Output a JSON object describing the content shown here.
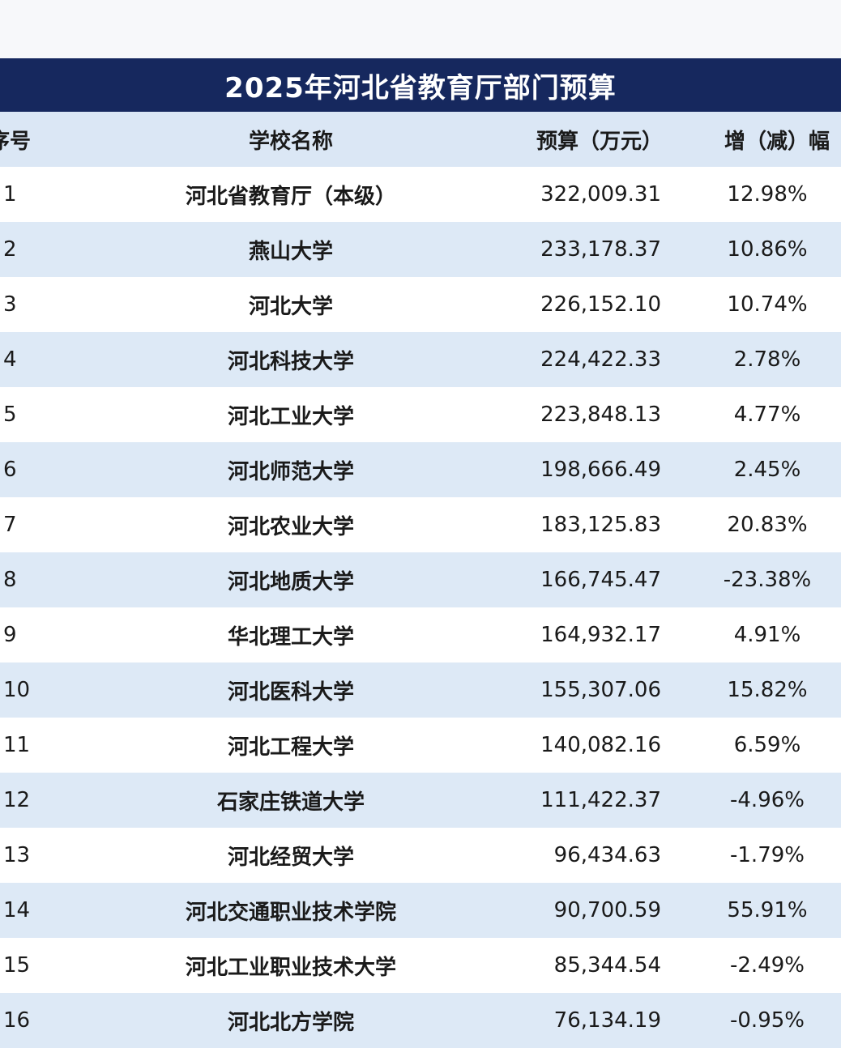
{
  "title": "2025年河北省教育厅部门预算",
  "headers": {
    "index": "序号",
    "name": "学校名称",
    "budget": "预算（万元）",
    "change": "增（减）幅"
  },
  "rows": [
    {
      "index": "1",
      "name": "河北省教育厅（本级）",
      "budget": "322,009.31",
      "change": "12.98%"
    },
    {
      "index": "2",
      "name": "燕山大学",
      "budget": "233,178.37",
      "change": "10.86%"
    },
    {
      "index": "3",
      "name": "河北大学",
      "budget": "226,152.10",
      "change": "10.74%"
    },
    {
      "index": "4",
      "name": "河北科技大学",
      "budget": "224,422.33",
      "change": "2.78%"
    },
    {
      "index": "5",
      "name": "河北工业大学",
      "budget": "223,848.13",
      "change": "4.77%"
    },
    {
      "index": "6",
      "name": "河北师范大学",
      "budget": "198,666.49",
      "change": "2.45%"
    },
    {
      "index": "7",
      "name": "河北农业大学",
      "budget": "183,125.83",
      "change": "20.83%"
    },
    {
      "index": "8",
      "name": "河北地质大学",
      "budget": "166,745.47",
      "change": "-23.38%"
    },
    {
      "index": "9",
      "name": "华北理工大学",
      "budget": "164,932.17",
      "change": "4.91%"
    },
    {
      "index": "10",
      "name": "河北医科大学",
      "budget": "155,307.06",
      "change": "15.82%"
    },
    {
      "index": "11",
      "name": "河北工程大学",
      "budget": "140,082.16",
      "change": "6.59%"
    },
    {
      "index": "12",
      "name": "石家庄铁道大学",
      "budget": "111,422.37",
      "change": "-4.96%"
    },
    {
      "index": "13",
      "name": "河北经贸大学",
      "budget": "96,434.63",
      "change": "-1.79%"
    },
    {
      "index": "14",
      "name": "河北交通职业技术学院",
      "budget": "90,700.59",
      "change": "55.91%"
    },
    {
      "index": "15",
      "name": "河北工业职业技术大学",
      "budget": "85,344.54",
      "change": "-2.49%"
    },
    {
      "index": "16",
      "name": "河北北方学院",
      "budget": "76,134.19",
      "change": "-0.95%"
    }
  ]
}
